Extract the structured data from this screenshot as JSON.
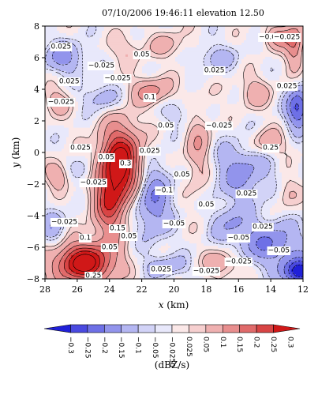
{
  "chart_data": {
    "type": "heatmap",
    "title": "07/10/2006 19:46:11 elevation 12.50",
    "xlabel_var": "x",
    "xlabel_unit": " (km)",
    "ylabel_var": "y",
    "ylabel_unit": " (km)",
    "xlim": [
      28,
      12
    ],
    "ylim": [
      -8,
      8
    ],
    "x_ticks": [
      "28",
      "26",
      "24",
      "22",
      "20",
      "18",
      "16",
      "14",
      "12"
    ],
    "y_ticks": [
      "8",
      "6",
      "4",
      "2",
      "0",
      "−2",
      "−4",
      "−6",
      "−8"
    ],
    "colorbar": {
      "label": "(dBZ/s)",
      "levels": [
        -0.3,
        -0.25,
        -0.2,
        -0.15,
        -0.1,
        -0.05,
        -0.025,
        0,
        0.025,
        0.05,
        0.1,
        0.15,
        0.2,
        0.25,
        0.3
      ],
      "tick_labels": [
        "−0.3",
        "−0.25",
        "−0.2",
        "−0.15",
        "−0.1",
        "−0.05",
        "−0.0250",
        "0.025",
        "0.05",
        "0.1",
        "0.15",
        "0.2",
        "0.25",
        "0.3"
      ],
      "colors": [
        "#2020d8",
        "#4a4ae0",
        "#6e70e6",
        "#9294ec",
        "#b4b6f2",
        "#d2d3f7",
        "#e8e8fb",
        "#fbe8e8",
        "#f6cfcf",
        "#efb0b0",
        "#e88e8e",
        "#e06a6a",
        "#d84444",
        "#d01818"
      ]
    },
    "contour_labels": [
      "0.025",
      "−0.025",
      "0.05",
      "0.1",
      "0.15",
      "0.25",
      "0.3",
      "−0.05",
      "−0.1",
      "−0.0"
    ],
    "features": [
      {
        "x": 23.3,
        "y": -0.6,
        "amp": 0.32,
        "sx": 0.9,
        "sy": 1.6
      },
      {
        "x": 24.0,
        "y": -3.2,
        "amp": 0.2,
        "sx": 0.7,
        "sy": 1.6
      },
      {
        "x": 25.6,
        "y": -7.0,
        "amp": 0.34,
        "sx": 1.3,
        "sy": 0.9
      },
      {
        "x": 21.3,
        "y": -3.0,
        "amp": -0.15,
        "sx": 0.8,
        "sy": 1.6
      },
      {
        "x": 21.4,
        "y": 3.9,
        "amp": 0.12,
        "sx": 0.9,
        "sy": 0.6
      },
      {
        "x": 18.5,
        "y": 0.2,
        "amp": 0.09,
        "sx": 0.6,
        "sy": 2.0
      },
      {
        "x": 15.8,
        "y": -1.2,
        "amp": -0.12,
        "sx": 1.3,
        "sy": 1.3
      },
      {
        "x": 14.0,
        "y": -5.8,
        "amp": -0.15,
        "sx": 1.4,
        "sy": 1.0
      },
      {
        "x": 16.5,
        "y": -4.5,
        "amp": -0.09,
        "sx": 0.8,
        "sy": 0.8
      },
      {
        "x": 12.2,
        "y": -7.6,
        "amp": -0.3,
        "sx": 0.7,
        "sy": 0.6
      },
      {
        "x": 12.3,
        "y": 2.8,
        "amp": -0.22,
        "sx": 0.5,
        "sy": 0.9
      },
      {
        "x": 12.5,
        "y": 6.8,
        "amp": 0.15,
        "sx": 0.4,
        "sy": 1.0
      },
      {
        "x": 13.5,
        "y": 7.3,
        "amp": 0.12,
        "sx": 0.6,
        "sy": 0.5
      },
      {
        "x": 26.8,
        "y": 6.0,
        "amp": -0.12,
        "sx": 0.9,
        "sy": 0.7
      },
      {
        "x": 27.3,
        "y": 3.2,
        "amp": 0.08,
        "sx": 0.6,
        "sy": 0.6
      },
      {
        "x": 27.5,
        "y": -4.8,
        "amp": -0.08,
        "sx": 0.6,
        "sy": 0.9
      },
      {
        "x": 27.2,
        "y": -1.5,
        "amp": 0.1,
        "sx": 0.5,
        "sy": 0.6
      },
      {
        "x": 24.5,
        "y": 3.5,
        "amp": -0.08,
        "sx": 0.8,
        "sy": 0.6
      },
      {
        "x": 20.3,
        "y": 6.8,
        "amp": 0.06,
        "sx": 1.0,
        "sy": 0.6
      },
      {
        "x": 17.5,
        "y": 6.0,
        "amp": -0.07,
        "sx": 1.0,
        "sy": 0.6
      },
      {
        "x": 15.0,
        "y": 3.8,
        "amp": 0.08,
        "sx": 0.7,
        "sy": 0.7
      },
      {
        "x": 14.2,
        "y": 0.6,
        "amp": 0.1,
        "sx": 0.8,
        "sy": 0.6
      },
      {
        "x": 17.0,
        "y": -7.0,
        "amp": 0.1,
        "sx": 0.8,
        "sy": 0.6
      },
      {
        "x": 20.5,
        "y": -7.2,
        "amp": -0.08,
        "sx": 1.0,
        "sy": 0.5
      },
      {
        "x": 25.5,
        "y": -1.2,
        "amp": -0.06,
        "sx": 0.6,
        "sy": 0.6
      },
      {
        "x": 19.6,
        "y": 2.5,
        "amp": -0.06,
        "sx": 0.7,
        "sy": 0.6
      },
      {
        "x": 23.0,
        "y": 6.5,
        "amp": 0.05,
        "sx": 0.8,
        "sy": 0.6
      },
      {
        "x": 13.0,
        "y": -2.5,
        "amp": 0.06,
        "sx": 0.5,
        "sy": 0.8
      }
    ],
    "label_positions": [
      {
        "x": 27.0,
        "y": 6.7,
        "v": "0.025"
      },
      {
        "x": 24.5,
        "y": 5.5,
        "v": "−0.025"
      },
      {
        "x": 22.0,
        "y": 6.2,
        "v": "0.05"
      },
      {
        "x": 17.5,
        "y": 5.2,
        "v": "0.025"
      },
      {
        "x": 14.2,
        "y": 7.3,
        "v": "−0.0"
      },
      {
        "x": 13.0,
        "y": 7.3,
        "v": "−0.025"
      },
      {
        "x": 26.5,
        "y": 4.5,
        "v": "0.025"
      },
      {
        "x": 23.5,
        "y": 4.7,
        "v": "−0.025"
      },
      {
        "x": 21.5,
        "y": 3.5,
        "v": "0.1"
      },
      {
        "x": 27.0,
        "y": 3.2,
        "v": "−0.025"
      },
      {
        "x": 13.0,
        "y": 4.2,
        "v": "0.025"
      },
      {
        "x": 20.5,
        "y": 1.7,
        "v": "0.05"
      },
      {
        "x": 17.2,
        "y": 1.7,
        "v": "−0.025"
      },
      {
        "x": 14.0,
        "y": 0.3,
        "v": "0.25"
      },
      {
        "x": 25.8,
        "y": 0.3,
        "v": "0.025"
      },
      {
        "x": 24.2,
        "y": -0.3,
        "v": "0.05"
      },
      {
        "x": 23.0,
        "y": -0.7,
        "v": "0.3"
      },
      {
        "x": 21.5,
        "y": 0.1,
        "v": "0.025"
      },
      {
        "x": 25.0,
        "y": -1.9,
        "v": "−0.025"
      },
      {
        "x": 19.5,
        "y": -1.4,
        "v": "0.05"
      },
      {
        "x": 20.6,
        "y": -2.4,
        "v": "−0.1"
      },
      {
        "x": 18.0,
        "y": -3.3,
        "v": "0.05"
      },
      {
        "x": 15.5,
        "y": -2.6,
        "v": "0.025"
      },
      {
        "x": 26.8,
        "y": -4.4,
        "v": "−0.025"
      },
      {
        "x": 23.5,
        "y": -4.8,
        "v": "0.15"
      },
      {
        "x": 25.5,
        "y": -5.4,
        "v": "0.1"
      },
      {
        "x": 22.8,
        "y": -5.3,
        "v": "0.05"
      },
      {
        "x": 20.0,
        "y": -4.5,
        "v": "−0.05"
      },
      {
        "x": 16.0,
        "y": -5.4,
        "v": "−0.05"
      },
      {
        "x": 14.5,
        "y": -4.7,
        "v": "0.025"
      },
      {
        "x": 24.0,
        "y": -6.0,
        "v": "0.05"
      },
      {
        "x": 16.0,
        "y": -6.9,
        "v": "−0.025"
      },
      {
        "x": 13.5,
        "y": -6.2,
        "v": "−0.05"
      },
      {
        "x": 25.0,
        "y": -7.8,
        "v": "0.25"
      },
      {
        "x": 20.8,
        "y": -7.4,
        "v": "0.025"
      },
      {
        "x": 18.0,
        "y": -7.5,
        "v": "−0.025"
      }
    ]
  }
}
